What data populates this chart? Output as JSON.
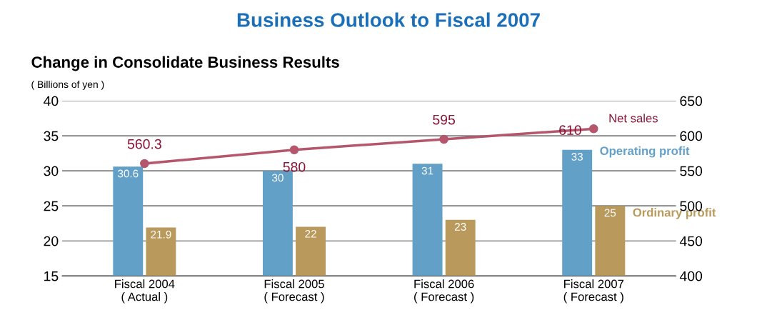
{
  "chart_data": {
    "type": "bar",
    "title": "Business Outlook to Fiscal 2007",
    "subtitle": "Change in Consolidate Business Results",
    "ylabel": "( Billions of yen )",
    "categories": [
      "Fiscal 2004\n( Actual )",
      "Fiscal 2005\n( Forecast )",
      "Fiscal 2006\n( Forecast )",
      "Fiscal 2007\n( Forecast )"
    ],
    "series": [
      {
        "name": "Operating profit",
        "color": "#62a0c8",
        "values": [
          30.6,
          30,
          31,
          33
        ]
      },
      {
        "name": "Ordinary profit",
        "color": "#b99a5c",
        "values": [
          21.9,
          22,
          23,
          25
        ]
      },
      {
        "name": "Net sales",
        "type": "line",
        "axis": "y2",
        "color": "#b5566c",
        "marker": "circle",
        "values": [
          560.3,
          580,
          595,
          610
        ]
      }
    ],
    "ylim": [
      15,
      40
    ],
    "yticks": [
      15,
      20,
      25,
      30,
      35,
      40
    ],
    "y2lim": [
      400,
      650
    ],
    "y2ticks": [
      400,
      450,
      500,
      550,
      600,
      650
    ],
    "grid": "y",
    "data_labels": true,
    "legend": false
  }
}
